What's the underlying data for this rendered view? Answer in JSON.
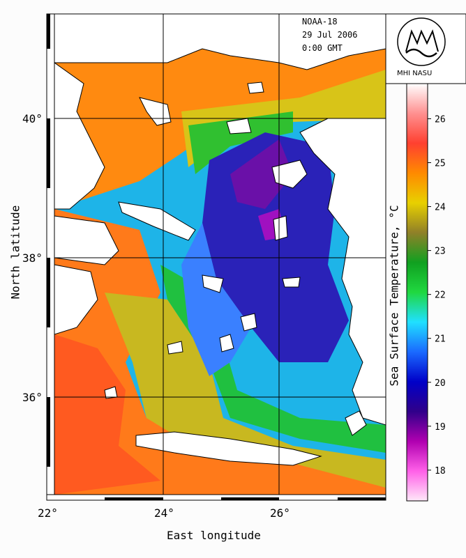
{
  "header": {
    "satellite": "NOAA-18",
    "date": "29 Jul 2006",
    "time": "0:00 GMT"
  },
  "logo": {
    "label": "MHI NASU"
  },
  "axes": {
    "xlabel": "East longitude",
    "ylabel": "North latitude",
    "xticks": [
      "22°",
      "24°",
      "26°"
    ],
    "yticks": [
      "40°",
      "38°",
      "36°"
    ]
  },
  "colorbar": {
    "label": "Sea Surface Temperature, °C",
    "ticks": [
      "26",
      "25",
      "24",
      "23",
      "22",
      "21",
      "20",
      "19",
      "18"
    ],
    "range": [
      17.3,
      26.8
    ],
    "stops": [
      "#ffe8f8",
      "#ff60e8",
      "#b000b0",
      "#30008a",
      "#0000c8",
      "#1a6aff",
      "#20e0ff",
      "#20d840",
      "#10a020",
      "#908028",
      "#e8d000",
      "#ff8a00",
      "#ff4030",
      "#ff9090",
      "#ffffff"
    ]
  },
  "colors": {
    "land": "#ffffff",
    "sea_cold": "#2a1aa8",
    "sea_mid": "#20d0ff",
    "sea_warm": "#ff6a1a"
  }
}
